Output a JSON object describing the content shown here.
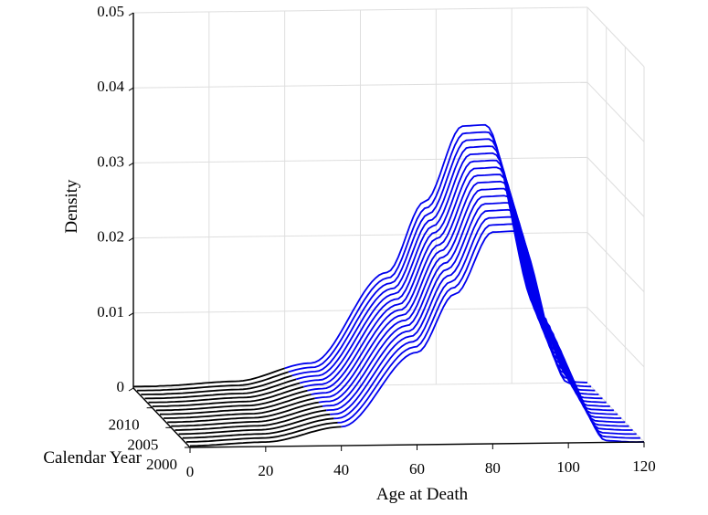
{
  "chart_data": {
    "type": "line-3d-waterfall",
    "title": "",
    "xlabel": "Age at Death",
    "ylabel": "Calendar Year",
    "zlabel": "Density",
    "xlim": [
      0,
      120
    ],
    "ylim": [
      2000,
      2015
    ],
    "zlim": [
      0,
      0.05
    ],
    "x_ticks": [
      "0",
      "20",
      "40",
      "60",
      "80",
      "100",
      "120"
    ],
    "y_ticks": [
      "2000",
      "2005",
      "2010"
    ],
    "z_ticks": [
      "0",
      "0.01",
      "0.02",
      "0.03",
      "0.04",
      "0.05"
    ],
    "years": [
      2000,
      2001,
      2002,
      2003,
      2004,
      2005,
      2006,
      2007,
      2008,
      2009,
      2010,
      2011,
      2012,
      2013,
      2014,
      2015
    ],
    "series_2000_density": [
      {
        "age": 0,
        "density": 0.0002
      },
      {
        "age": 20,
        "density": 0.0006
      },
      {
        "age": 40,
        "density": 0.0025
      },
      {
        "age": 60,
        "density": 0.0123
      },
      {
        "age": 70,
        "density": 0.02
      },
      {
        "age": 80,
        "density": 0.0282
      },
      {
        "age": 86,
        "density": 0.0283
      },
      {
        "age": 100,
        "density": 0.008
      },
      {
        "age": 110,
        "density": 0.0003
      },
      {
        "age": 120,
        "density": 0.0
      }
    ],
    "series_2015_peak_density": 0.0345,
    "line_color_under_age_40": "#000000",
    "line_color_over_age_40": "#0000ee"
  }
}
